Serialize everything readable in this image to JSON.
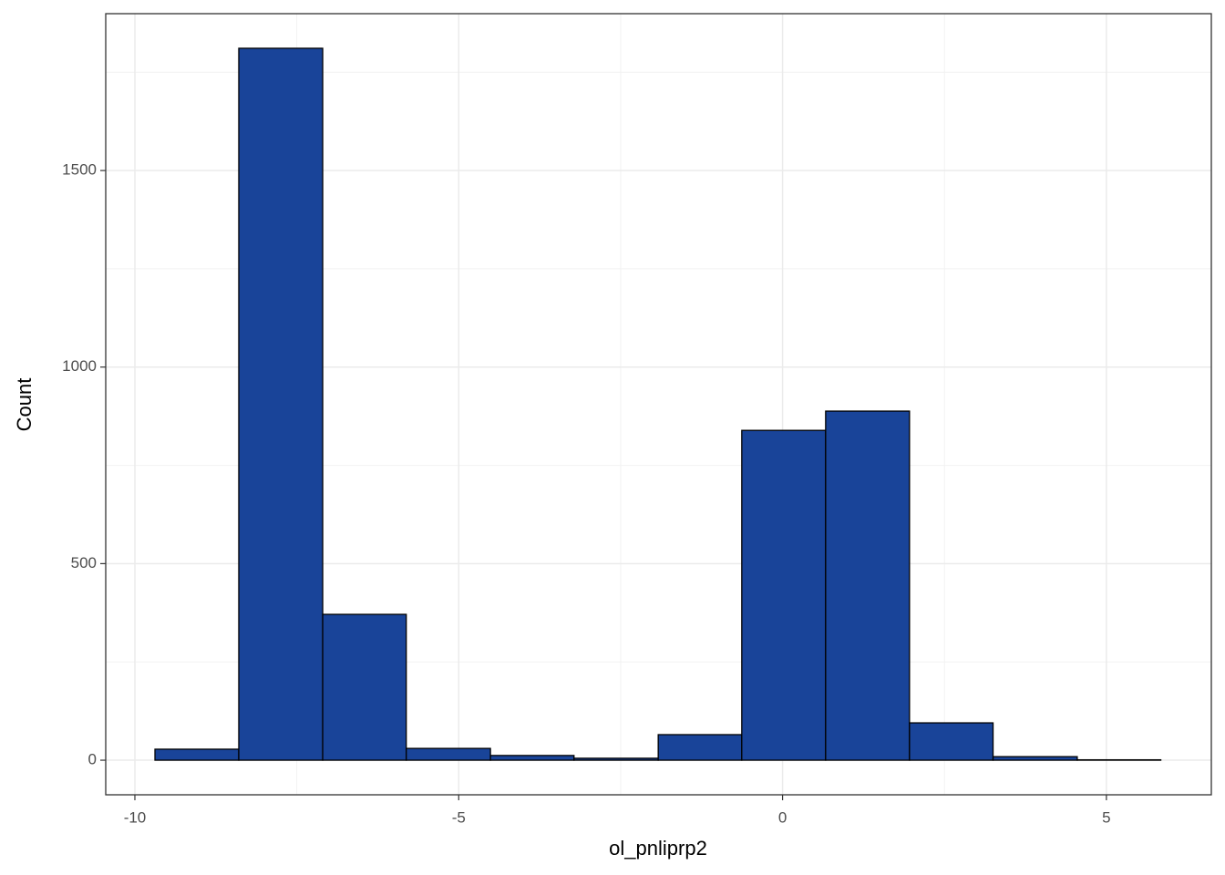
{
  "chart_data": {
    "type": "histogram",
    "x_label": "ol_pnliprp2",
    "y_label": "Count",
    "bins": [
      -9.69,
      -8.396,
      -7.1,
      -5.81,
      -4.51,
      -3.22,
      -1.92,
      -0.63,
      0.665,
      1.96,
      3.25,
      4.55,
      5.84
    ],
    "values": [
      28,
      1811,
      371,
      30,
      12,
      5,
      65,
      839,
      888,
      95,
      9,
      1
    ],
    "color": "#194499",
    "xlim": [
      -10.45,
      6.62
    ],
    "ylim": [
      -88,
      1899
    ],
    "xticks": [
      -10,
      -5,
      0,
      5
    ],
    "yticks": [
      0,
      500,
      1000,
      1500
    ],
    "grid": true,
    "minor_grid": true
  }
}
